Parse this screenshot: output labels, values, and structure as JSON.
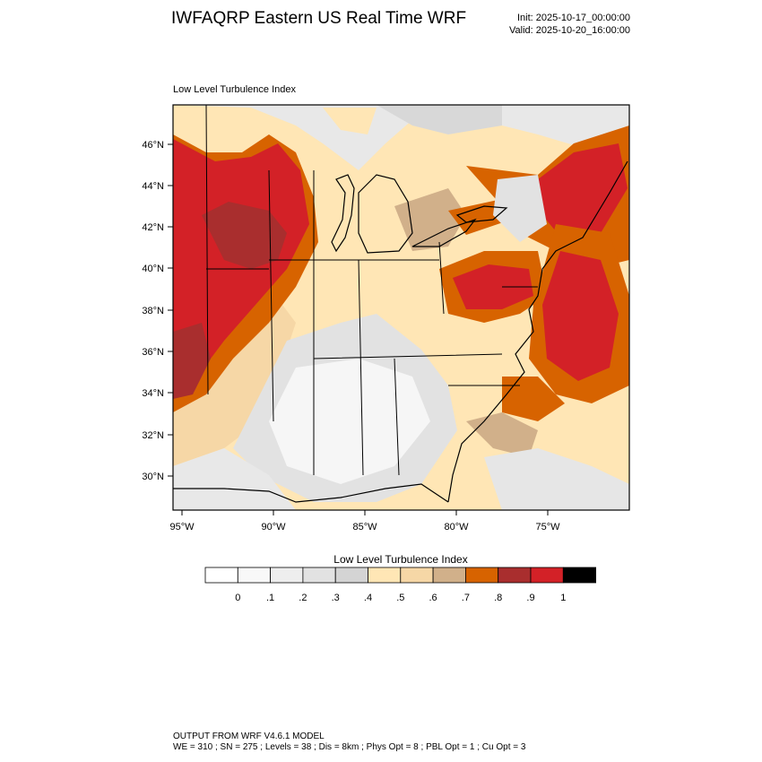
{
  "header": {
    "title": "IWFAQRP Eastern US Real Time WRF",
    "init": "Init: 2025-10-17_00:00:00",
    "valid": "Valid: 2025-10-20_16:00:00"
  },
  "map": {
    "subtitle": "Low Level Turbulence Index",
    "lat_labels": [
      "46°N",
      "44°N",
      "42°N",
      "40°N",
      "38°N",
      "36°N",
      "34°N",
      "32°N",
      "30°N"
    ],
    "lon_labels": [
      "95°W",
      "90°W",
      "85°W",
      "80°W",
      "75°W"
    ]
  },
  "colorbar": {
    "title": "Low Level Turbulence Index",
    "tick_labels": [
      "0",
      ".1",
      ".2",
      ".3",
      ".4",
      ".5",
      ".6",
      ".7",
      ".8",
      ".9",
      "1"
    ],
    "colors": [
      "#ffffff",
      "#f8f8f8",
      "#eeeeee",
      "#e2e2e2",
      "#d4d4d4",
      "#ffe6b5",
      "#f6d7a6",
      "#d1b08a",
      "#d76300",
      "#a92e2e",
      "#d32127",
      "#000000"
    ]
  },
  "footer": {
    "line1": "OUTPUT FROM WRF V4.6.1 MODEL",
    "line2": "WE = 310 ; SN = 275 ; Levels = 38 ; Dis = 8km ; Phys Opt = 8 ; PBL Opt = 1 ; Cu Opt = 3"
  }
}
